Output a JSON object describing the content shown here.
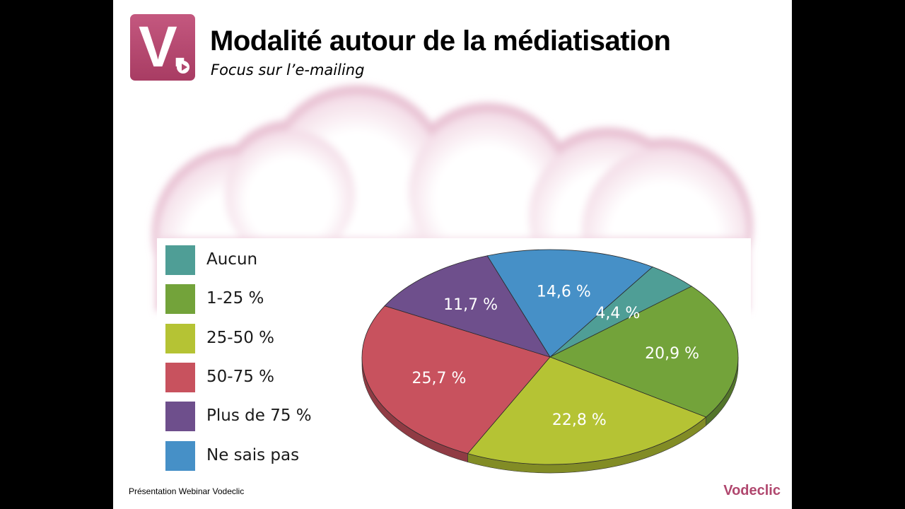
{
  "header": {
    "logo_letter": "V.",
    "title": "Modalité autour de la médiatisation",
    "subtitle": "Focus sur l’e-mailing"
  },
  "chart_data": {
    "type": "pie",
    "categories": [
      "Aucun",
      "1-25 %",
      "25-50 %",
      "50-75 %",
      "Plus de 75 %",
      "Ne sais pas"
    ],
    "values": [
      4.4,
      20.9,
      22.8,
      25.7,
      11.7,
      14.6
    ],
    "value_labels": [
      "4,4 %",
      "20,9 %",
      "22,8 %",
      "25,7 %",
      "11,7 %",
      "14,6 %"
    ],
    "colors": [
      "#4f9e96",
      "#73a33a",
      "#b5c334",
      "#c8525e",
      "#6e4f8c",
      "#4690c7"
    ],
    "legend_position": "left",
    "three_d": true
  },
  "legend": {
    "items": [
      {
        "label": "Aucun",
        "color": "#4f9e96"
      },
      {
        "label": "1-25 %",
        "color": "#73a33a"
      },
      {
        "label": "25-50 %",
        "color": "#b5c334"
      },
      {
        "label": "50-75 %",
        "color": "#c8525e"
      },
      {
        "label": "Plus de 75 %",
        "color": "#6e4f8c"
      },
      {
        "label": "Ne sais pas",
        "color": "#4690c7"
      }
    ]
  },
  "footer": {
    "left_text": "Présentation Webinar Vodeclic",
    "brand": "Vodeclic"
  }
}
